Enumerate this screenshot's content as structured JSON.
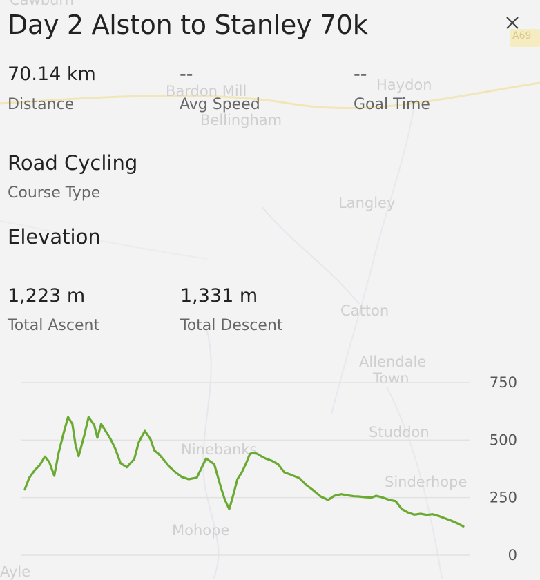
{
  "map": {
    "place_labels": [
      "Cawburn",
      "Bardon Mill",
      "Haydon",
      "Bellingham",
      "Langley",
      "Catton",
      "Allendale",
      "Town",
      "Studdon",
      "Sinderhope",
      "Ninebanks",
      "Mohope",
      "Ayle"
    ],
    "road_badge": "A69"
  },
  "header": {
    "title": "Day 2 Alston to Stanley 70k",
    "close_icon": "close-icon"
  },
  "stats": {
    "distance_value": "70.14 km",
    "distance_label": "Distance",
    "avg_speed_value": "--",
    "avg_speed_label": "Avg Speed",
    "goal_time_value": "--",
    "goal_time_label": "Goal Time"
  },
  "course": {
    "type_value": "Road Cycling",
    "type_label": "Course Type"
  },
  "elevation": {
    "heading": "Elevation",
    "ascent_value": "1,223 m",
    "ascent_label": "Total Ascent",
    "descent_value": "1,331 m",
    "descent_label": "Total Descent"
  },
  "chart_data": {
    "type": "line",
    "ytick_labels": [
      "750",
      "500",
      "250",
      "0"
    ],
    "yticks": [
      750,
      500,
      250,
      0
    ],
    "ylim": [
      0,
      750
    ],
    "xlim": [
      0,
      70.14
    ],
    "line_color": "#6aaa32",
    "grid": true,
    "series": [
      {
        "x": [
          0,
          0.7,
          1.6,
          2.4,
          3.2,
          3.9,
          4.7,
          5.4,
          6.2,
          6.9,
          7.6,
          8.1,
          8.6,
          9.1,
          9.5,
          10.2,
          11.1,
          11.6,
          12.2,
          13.2,
          13.8,
          14.5,
          15.3,
          16.3,
          16.9,
          17.5,
          18.2,
          19.2,
          20.1,
          20.7,
          21.4,
          22.2,
          23.1,
          24.1,
          25.1,
          26.2,
          27.5,
          29.0,
          30.3,
          31.4,
          32.0,
          32.7,
          33.3,
          34.0,
          34.7,
          35.4,
          36.0,
          36.6,
          37.2,
          37.8,
          38.5,
          39.5,
          40.5,
          41.5,
          42.5,
          43.9,
          45.0,
          46.0,
          47.3,
          48.5,
          49.5,
          50.6,
          51.6,
          52.6,
          53.4,
          54.4,
          55.4,
          56.2,
          57.3,
          58.3,
          59.3,
          60.3,
          61.3,
          62.3,
          63.3,
          64.3,
          65.2,
          66.2,
          67.2,
          68.2,
          69.2,
          70.14
        ],
        "y": [
          286,
          336,
          370,
          392,
          428,
          405,
          345,
          445,
          530,
          600,
          570,
          480,
          430,
          480,
          520,
          600,
          565,
          510,
          570,
          527,
          500,
          460,
          400,
          382,
          400,
          417,
          490,
          540,
          503,
          455,
          440,
          415,
          385,
          360,
          340,
          330,
          337,
          420,
          395,
          290,
          240,
          200,
          258,
          330,
          360,
          400,
          440,
          445,
          440,
          430,
          420,
          410,
          395,
          360,
          350,
          335,
          305,
          285,
          255,
          240,
          258,
          265,
          260,
          256,
          255,
          252,
          250,
          258,
          250,
          240,
          235,
          200,
          185,
          176,
          180,
          175,
          178,
          170,
          160,
          150,
          138,
          125
        ]
      }
    ]
  }
}
